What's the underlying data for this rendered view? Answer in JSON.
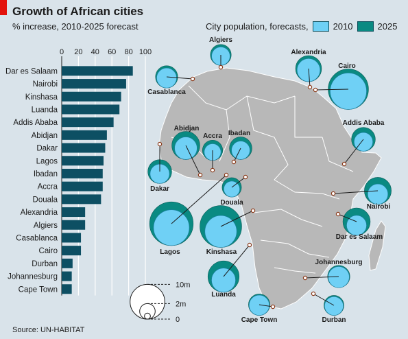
{
  "header": {
    "title": "Growth of African cities",
    "subtitle": "% increase, 2010-2025 forecast"
  },
  "legend": {
    "label": "City population, forecasts,",
    "series_2010": "2010",
    "series_2025": "2025"
  },
  "colors": {
    "bar": "#0d4f63",
    "bubble_2010": "#6fd0f5",
    "bubble_2025": "#0a8a82",
    "map_land": "#b8b8b8",
    "background": "#d9e3ea",
    "accent": "#e3120b"
  },
  "source": "Source: UN-HABITAT",
  "size_key": {
    "labels": [
      "10m",
      "2m",
      "0"
    ]
  },
  "chart_data": [
    {
      "type": "bar",
      "orientation": "horizontal",
      "categories": [
        "Dar es Salaam",
        "Nairobi",
        "Kinshasa",
        "Luanda",
        "Addis Ababa",
        "Abidjan",
        "Dakar",
        "Lagos",
        "Ibadan",
        "Accra",
        "Douala",
        "Alexandria",
        "Algiers",
        "Casablanca",
        "Cairo",
        "Durban",
        "Johannesburg",
        "Cape Town"
      ],
      "values": [
        85,
        77,
        71,
        69,
        62,
        54,
        52,
        50,
        49,
        49,
        47,
        28,
        28,
        23,
        23,
        13,
        12,
        12
      ],
      "xlim": [
        0,
        100
      ],
      "xticks": [
        0,
        20,
        40,
        60,
        80,
        100
      ],
      "title": "",
      "xlabel": "",
      "ylabel": ""
    },
    {
      "type": "scatter",
      "kind": "bubble-map",
      "series": [
        {
          "name": "2010",
          "values": [
            3.3,
            3.4,
            8.4,
            4.8,
            2.9,
            4.2,
            3.1,
            10.6,
            2.8,
            2.3,
            2.1,
            4.4,
            2.8,
            3.3,
            11.0,
            2.9,
            3.7,
            3.4
          ]
        },
        {
          "name": "2025",
          "values": [
            6.2,
            6.0,
            14.5,
            8.1,
            4.7,
            6.5,
            4.7,
            15.8,
            4.2,
            3.4,
            3.1,
            5.6,
            3.6,
            4.1,
            13.5,
            3.3,
            4.1,
            3.8
          ]
        }
      ],
      "categories": [
        "Dar es Salaam",
        "Nairobi",
        "Kinshasa",
        "Luanda",
        "Addis Ababa",
        "Abidjan",
        "Dakar",
        "Lagos",
        "Ibadan",
        "Accra",
        "Douala",
        "Alexandria",
        "Algiers",
        "Casablanca",
        "Cairo",
        "Durban",
        "Johannesburg",
        "Cape Town"
      ],
      "units": "millions"
    }
  ]
}
